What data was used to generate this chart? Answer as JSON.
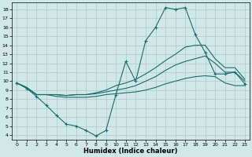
{
  "xlabel": "Humidex (Indice chaleur)",
  "background_color": "#cfe8e8",
  "grid_color": "#b0c8c8",
  "line_color": "#1e6b6b",
  "x_ticks": [
    0,
    1,
    2,
    3,
    4,
    5,
    6,
    7,
    8,
    9,
    10,
    11,
    12,
    13,
    14,
    15,
    16,
    17,
    18,
    19,
    20,
    21,
    22,
    23
  ],
  "y_ticks": [
    4,
    5,
    6,
    7,
    8,
    9,
    10,
    11,
    12,
    13,
    14,
    15,
    16,
    17,
    18
  ],
  "xlim": [
    -0.5,
    23.5
  ],
  "ylim": [
    3.5,
    18.8
  ],
  "line1_x": [
    0,
    1,
    2,
    3,
    4,
    5,
    6,
    7,
    8,
    9,
    10,
    11,
    12,
    13,
    14,
    15,
    16,
    17,
    18,
    19,
    20,
    21,
    22,
    23
  ],
  "line1_y": [
    9.8,
    9.2,
    8.3,
    7.3,
    6.2,
    5.2,
    5.0,
    4.5,
    3.9,
    4.5,
    8.5,
    12.2,
    10.0,
    14.5,
    16.0,
    18.2,
    18.0,
    18.2,
    15.2,
    13.2,
    10.8,
    10.8,
    11.0,
    9.7
  ],
  "line2_x": [
    0,
    1,
    2,
    3,
    4,
    5,
    6,
    7,
    8,
    9,
    10,
    11,
    12,
    13,
    14,
    15,
    16,
    17,
    18,
    19,
    20,
    21,
    22,
    23
  ],
  "line2_y": [
    9.8,
    9.3,
    8.5,
    8.5,
    8.3,
    8.2,
    8.2,
    8.2,
    8.3,
    8.5,
    8.6,
    8.7,
    8.8,
    9.0,
    9.3,
    9.7,
    10.0,
    10.3,
    10.5,
    10.6,
    10.5,
    9.8,
    9.5,
    9.5
  ],
  "line3_x": [
    0,
    1,
    2,
    3,
    4,
    5,
    6,
    7,
    8,
    9,
    10,
    11,
    12,
    13,
    14,
    15,
    16,
    17,
    18,
    19,
    20,
    21,
    22,
    23
  ],
  "line3_y": [
    9.8,
    9.3,
    8.5,
    8.5,
    8.5,
    8.4,
    8.5,
    8.5,
    8.6,
    8.8,
    9.0,
    9.2,
    9.5,
    10.0,
    10.5,
    11.2,
    11.8,
    12.2,
    12.5,
    12.8,
    12.0,
    11.0,
    11.0,
    10.0
  ],
  "line4_x": [
    0,
    1,
    2,
    3,
    4,
    5,
    6,
    7,
    8,
    9,
    10,
    11,
    12,
    13,
    14,
    15,
    16,
    17,
    18,
    19,
    20,
    21,
    22,
    23
  ],
  "line4_y": [
    9.8,
    9.3,
    8.5,
    8.5,
    8.5,
    8.4,
    8.5,
    8.5,
    8.7,
    9.0,
    9.5,
    9.8,
    10.2,
    10.8,
    11.5,
    12.3,
    13.0,
    13.8,
    14.0,
    14.0,
    12.5,
    11.5,
    11.5,
    10.2
  ]
}
